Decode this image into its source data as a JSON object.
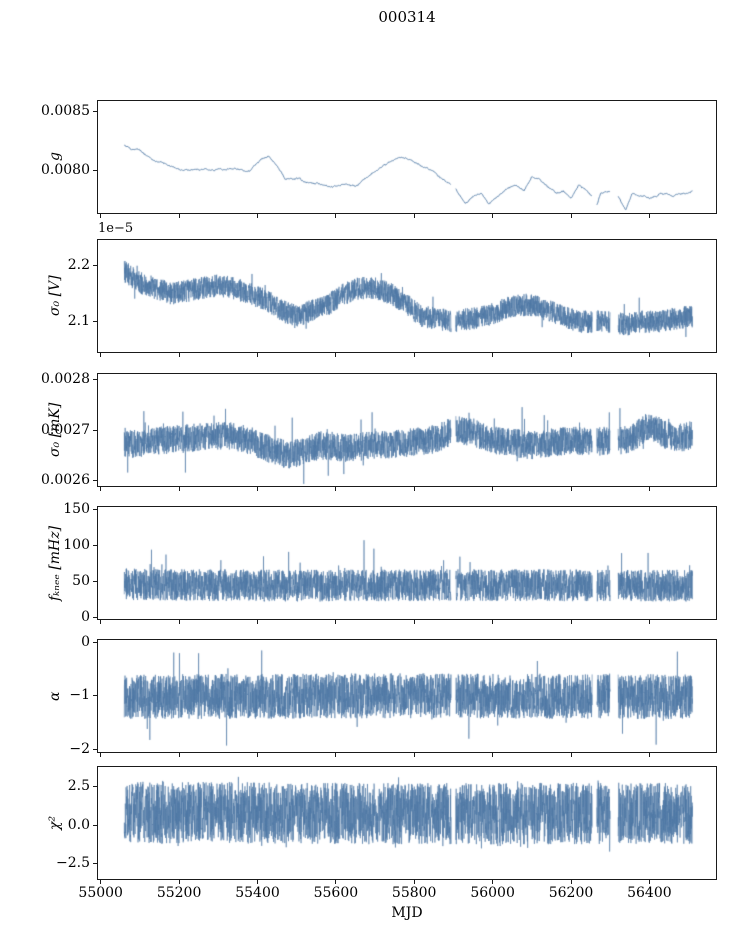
{
  "chart_data": {
    "type": "line",
    "title": "000314",
    "xlabel": "MJD",
    "line_color": "#4d77a4",
    "axis_color": "#1a1a1a",
    "background": "#ffffff",
    "xlim": [
      54993,
      56570
    ],
    "x_data_range": [
      55060,
      56510
    ],
    "xticks": [
      {
        "v": 55000,
        "label": "55000"
      },
      {
        "v": 55200,
        "label": "55200"
      },
      {
        "v": 55400,
        "label": "55400"
      },
      {
        "v": 55600,
        "label": "55600"
      },
      {
        "v": 55800,
        "label": "55800"
      },
      {
        "v": 56000,
        "label": "56000"
      },
      {
        "v": 56200,
        "label": "56200"
      },
      {
        "v": 56400,
        "label": "56400"
      }
    ],
    "gaps": [
      [
        55894,
        55906
      ],
      [
        56254,
        56266
      ],
      [
        56300,
        56320
      ]
    ],
    "panels": [
      {
        "name": "g",
        "ylabel": "g",
        "offset_text": "",
        "ylim": [
          0.00764,
          0.00859
        ],
        "yticks": [
          {
            "v": 0.008,
            "label": "0.0080"
          },
          {
            "v": 0.0085,
            "label": "0.0085"
          }
        ],
        "style": "smooth",
        "noise_amp": 1.5e-05,
        "spike_prob": 0,
        "spike_amp": 0,
        "spike_dir": 0,
        "trend": [
          [
            55060,
            0.00822
          ],
          [
            55090,
            0.00818
          ],
          [
            55120,
            0.00813
          ],
          [
            55150,
            0.00808
          ],
          [
            55180,
            0.00804
          ],
          [
            55210,
            0.008
          ],
          [
            55260,
            0.008
          ],
          [
            55300,
            0.00801
          ],
          [
            55340,
            0.00802
          ],
          [
            55380,
            0.008
          ],
          [
            55410,
            0.00809
          ],
          [
            55430,
            0.00812
          ],
          [
            55450,
            0.00804
          ],
          [
            55470,
            0.00792
          ],
          [
            55500,
            0.00793
          ],
          [
            55530,
            0.00789
          ],
          [
            55560,
            0.00788
          ],
          [
            55590,
            0.00786
          ],
          [
            55620,
            0.00789
          ],
          [
            55650,
            0.00787
          ],
          [
            55690,
            0.00797
          ],
          [
            55720,
            0.00803
          ],
          [
            55750,
            0.00809
          ],
          [
            55780,
            0.0081
          ],
          [
            55810,
            0.00806
          ],
          [
            55840,
            0.00801
          ],
          [
            55870,
            0.00793
          ],
          [
            55900,
            0.00787
          ],
          [
            55930,
            0.00773
          ],
          [
            55950,
            0.00777
          ],
          [
            55970,
            0.0078
          ],
          [
            55990,
            0.00772
          ],
          [
            56010,
            0.00777
          ],
          [
            56030,
            0.00782
          ],
          [
            56060,
            0.00788
          ],
          [
            56080,
            0.00783
          ],
          [
            56100,
            0.00795
          ],
          [
            56120,
            0.00793
          ],
          [
            56140,
            0.00786
          ],
          [
            56160,
            0.0078
          ],
          [
            56180,
            0.00782
          ],
          [
            56200,
            0.00776
          ],
          [
            56220,
            0.00788
          ],
          [
            56240,
            0.00783
          ],
          [
            56255,
            0.00779
          ],
          [
            56262,
            0.00768
          ],
          [
            56275,
            0.00781
          ],
          [
            56300,
            0.00783
          ],
          [
            56320,
            0.00779
          ],
          [
            56340,
            0.00766
          ],
          [
            56355,
            0.0078
          ],
          [
            56380,
            0.00779
          ],
          [
            56400,
            0.00777
          ],
          [
            56430,
            0.00781
          ],
          [
            56460,
            0.00779
          ],
          [
            56490,
            0.00781
          ],
          [
            56510,
            0.00783
          ]
        ]
      },
      {
        "name": "sigma0-V",
        "ylabel": "σ₀ [V]",
        "offset_text": "1e−5",
        "ylim": [
          2.046e-05,
          2.246e-05
        ],
        "yticks": [
          {
            "v": 2.1e-05,
            "label": "2.1"
          },
          {
            "v": 2.2e-05,
            "label": "2.2"
          }
        ],
        "style": "band",
        "noise_amp": 2e-07,
        "spike_prob": 0.01,
        "spike_amp": 3e-07,
        "spike_dir": 0,
        "trend": [
          [
            55060,
            2.19e-05
          ],
          [
            55100,
            2.17e-05
          ],
          [
            55140,
            2.16e-05
          ],
          [
            55180,
            2.15e-05
          ],
          [
            55220,
            2.155e-05
          ],
          [
            55260,
            2.16e-05
          ],
          [
            55300,
            2.165e-05
          ],
          [
            55340,
            2.16e-05
          ],
          [
            55380,
            2.15e-05
          ],
          [
            55420,
            2.14e-05
          ],
          [
            55460,
            2.12e-05
          ],
          [
            55500,
            2.11e-05
          ],
          [
            55540,
            2.12e-05
          ],
          [
            55580,
            2.13e-05
          ],
          [
            55620,
            2.15e-05
          ],
          [
            55660,
            2.16e-05
          ],
          [
            55700,
            2.16e-05
          ],
          [
            55740,
            2.15e-05
          ],
          [
            55780,
            2.13e-05
          ],
          [
            55820,
            2.11e-05
          ],
          [
            55860,
            2.105e-05
          ],
          [
            55900,
            2.1e-05
          ],
          [
            55940,
            2.105e-05
          ],
          [
            55980,
            2.11e-05
          ],
          [
            56020,
            2.12e-05
          ],
          [
            56060,
            2.13e-05
          ],
          [
            56100,
            2.13e-05
          ],
          [
            56140,
            2.12e-05
          ],
          [
            56180,
            2.11e-05
          ],
          [
            56220,
            2.1e-05
          ],
          [
            56260,
            2.1e-05
          ],
          [
            56300,
            2.1e-05
          ],
          [
            56340,
            2.095e-05
          ],
          [
            56380,
            2.1e-05
          ],
          [
            56420,
            2.1e-05
          ],
          [
            56460,
            2.105e-05
          ],
          [
            56510,
            2.11e-05
          ]
        ]
      },
      {
        "name": "sigma0-mK",
        "ylabel": "σ₀ [mK]",
        "offset_text": "",
        "ylim": [
          0.00259,
          0.00281
        ],
        "yticks": [
          {
            "v": 0.0026,
            "label": "0.0026"
          },
          {
            "v": 0.0027,
            "label": "0.0027"
          },
          {
            "v": 0.0028,
            "label": "0.0028"
          }
        ],
        "style": "band",
        "noise_amp": 2.8e-05,
        "spike_prob": 0.012,
        "spike_amp": 5e-05,
        "spike_dir": 0,
        "trend": [
          [
            55060,
            0.00267
          ],
          [
            55150,
            0.00268
          ],
          [
            55250,
            0.002685
          ],
          [
            55320,
            0.00269
          ],
          [
            55380,
            0.00268
          ],
          [
            55440,
            0.00266
          ],
          [
            55480,
            0.00265
          ],
          [
            55520,
            0.00266
          ],
          [
            55560,
            0.00267
          ],
          [
            55620,
            0.002665
          ],
          [
            55700,
            0.00267
          ],
          [
            55780,
            0.002675
          ],
          [
            55850,
            0.00268
          ],
          [
            55900,
            0.0027
          ],
          [
            55950,
            0.002695
          ],
          [
            56000,
            0.00268
          ],
          [
            56050,
            0.002675
          ],
          [
            56100,
            0.00267
          ],
          [
            56150,
            0.002675
          ],
          [
            56200,
            0.00268
          ],
          [
            56250,
            0.002675
          ],
          [
            56300,
            0.00268
          ],
          [
            56350,
            0.00268
          ],
          [
            56400,
            0.00271
          ],
          [
            56440,
            0.00269
          ],
          [
            56480,
            0.002685
          ],
          [
            56510,
            0.00269
          ]
        ]
      },
      {
        "name": "fknee",
        "ylabel": "fₖₙₑₑ [mHz]",
        "offset_text": "",
        "ylim": [
          -2,
          153
        ],
        "yticks": [
          {
            "v": 0,
            "label": "0"
          },
          {
            "v": 50,
            "label": "50"
          },
          {
            "v": 100,
            "label": "100"
          },
          {
            "v": 150,
            "label": "150"
          }
        ],
        "style": "band",
        "noise_amp": 22,
        "spike_prob": 0.01,
        "spike_amp": 45,
        "spike_dir": 1,
        "trend": [
          [
            55060,
            46
          ],
          [
            55500,
            44
          ],
          [
            56000,
            45
          ],
          [
            56510,
            44
          ]
        ]
      },
      {
        "name": "alpha",
        "ylabel": "α",
        "offset_text": "",
        "ylim": [
          -2.05,
          0.04
        ],
        "yticks": [
          {
            "v": -2,
            "label": "−2"
          },
          {
            "v": -1,
            "label": "−1"
          },
          {
            "v": 0,
            "label": "0"
          }
        ],
        "style": "band",
        "noise_amp": 0.42,
        "spike_prob": 0.01,
        "spike_amp": 0.55,
        "spike_dir": 0,
        "trend": [
          [
            55060,
            -1.02
          ],
          [
            55800,
            -1.0
          ],
          [
            56510,
            -1.02
          ]
        ]
      },
      {
        "name": "chi2",
        "ylabel": "χ²",
        "offset_text": "",
        "ylim": [
          -3.5,
          3.8
        ],
        "yticks": [
          {
            "v": -2.5,
            "label": "−2.5"
          },
          {
            "v": 0.0,
            "label": "0.0"
          },
          {
            "v": 2.5,
            "label": "2.5"
          }
        ],
        "style": "band",
        "noise_amp": 2.0,
        "spike_prob": 0.04,
        "spike_amp": 0.8,
        "spike_dir": 0,
        "trend": [
          [
            55060,
            0.85
          ],
          [
            55800,
            0.75
          ],
          [
            56510,
            0.78
          ]
        ]
      }
    ]
  }
}
